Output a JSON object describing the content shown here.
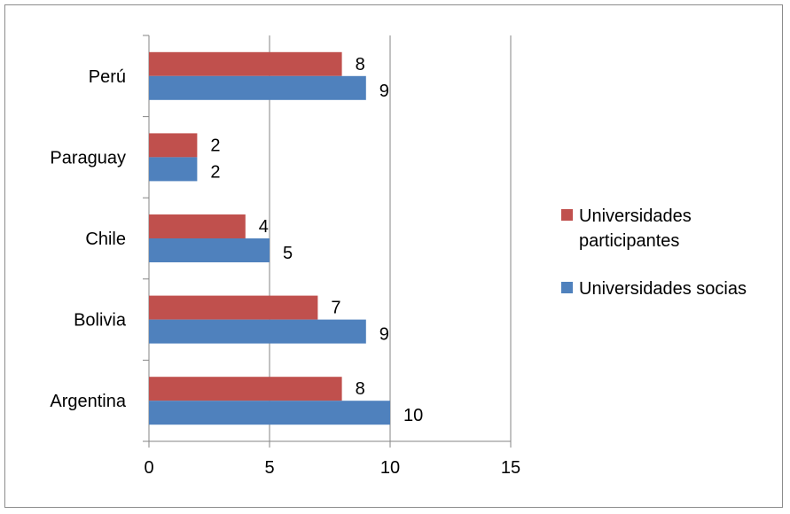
{
  "chart_data": {
    "type": "bar",
    "orientation": "horizontal",
    "categories": [
      "Argentina",
      "Bolivia",
      "Chile",
      "Paraguay",
      "Perú"
    ],
    "series": [
      {
        "name": "Universidades socias",
        "color": "#4F81BD",
        "values": [
          10,
          9,
          5,
          2,
          9
        ]
      },
      {
        "name": "Universidades participantes",
        "color": "#C0504D",
        "values": [
          8,
          7,
          4,
          2,
          8
        ]
      }
    ],
    "xlim": [
      0,
      15
    ],
    "xticks": [
      0,
      5,
      10,
      15
    ],
    "xtick_labels": [
      "0",
      "5",
      "10",
      "15"
    ],
    "grid": "vertical",
    "legend_position": "right",
    "legend_order": [
      "Universidades participantes",
      "Universidades socias"
    ],
    "data_labels": true,
    "title": "",
    "xlabel": "",
    "ylabel": ""
  }
}
